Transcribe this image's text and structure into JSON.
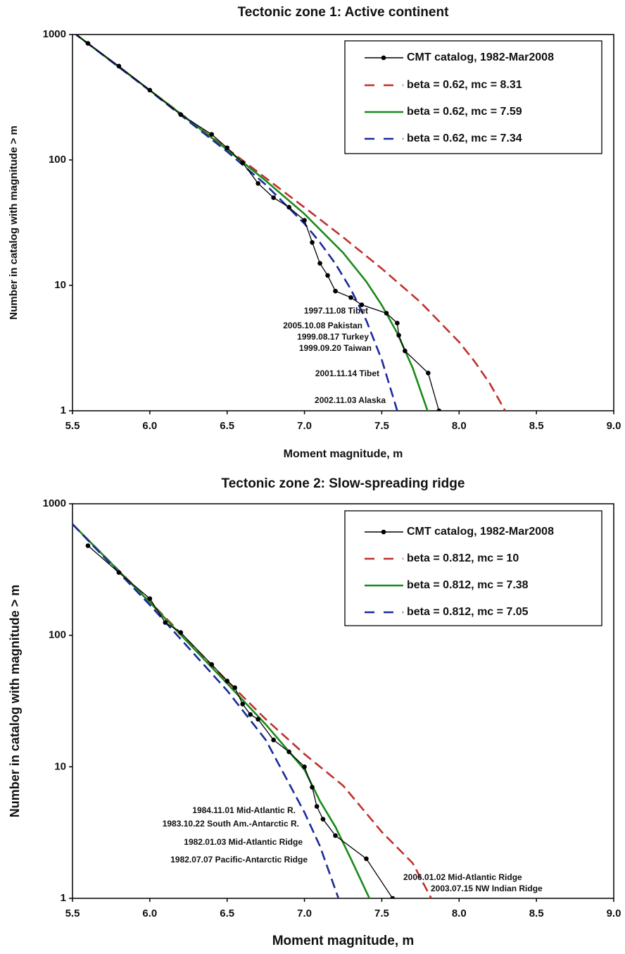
{
  "chart_data": [
    {
      "type": "line",
      "title": "Tectonic zone 1: Active continent",
      "xlabel": "Moment magnitude, m",
      "ylabel": "Number in catalog with magnitude > m",
      "log_y": true,
      "xlim": [
        5.5,
        9.0
      ],
      "ylim": [
        1,
        1000
      ],
      "xticks": [
        5.5,
        {
          "value": 6,
          "label": "6.0"
        },
        6.5,
        {
          "value": 7,
          "label": "7.0"
        },
        7.5,
        {
          "value": 8,
          "label": "8.0"
        },
        8.5,
        {
          "value": 9,
          "label": "9.0"
        }
      ],
      "yticks": [
        1,
        10,
        100,
        1000
      ],
      "series": [
        {
          "name": "CMT catalog, 1982-Mar2008",
          "color": "#000000",
          "dash": "solid",
          "marker": true,
          "x": [
            5.5,
            5.6,
            5.8,
            6.0,
            6.2,
            6.4,
            6.5,
            6.6,
            6.7,
            6.8,
            6.9,
            7.0,
            7.05,
            7.1,
            7.15,
            7.2,
            7.3,
            7.37,
            7.53,
            7.6,
            7.61,
            7.65,
            7.8,
            7.87
          ],
          "values": [
            1050,
            850,
            560,
            360,
            230,
            160,
            125,
            95,
            65,
            50,
            42,
            33,
            22,
            15,
            12,
            9,
            8,
            7,
            6,
            5,
            4,
            3,
            2,
            1
          ]
        },
        {
          "name": "beta = 0.62, mc = 8.31",
          "color": "#c0302b",
          "dash": "dashed",
          "marker": false,
          "x": [
            5.5,
            6.0,
            6.5,
            7.0,
            7.25,
            7.5,
            7.75,
            8.0,
            8.1,
            8.2,
            8.3
          ],
          "values": [
            1050,
            360,
            123,
            41.8,
            24.2,
            13.6,
            7.34,
            3.53,
            2.47,
            1.64,
            0.99
          ]
        },
        {
          "name": "beta = 0.62, mc = 7.59",
          "color": "#1a8a1a",
          "dash": "solid",
          "marker": false,
          "x": [
            5.5,
            6.0,
            6.5,
            6.75,
            7.0,
            7.25,
            7.4,
            7.5,
            7.6,
            7.7,
            7.8
          ],
          "values": [
            1050,
            359,
            121,
            68.3,
            37.1,
            18.2,
            10.7,
            6.96,
            4.16,
            2.19,
            0.97
          ]
        },
        {
          "name": "beta = 0.62, mc = 7.34",
          "color": "#1a2a9a",
          "dash": "dashed",
          "marker": false,
          "x": [
            5.5,
            6.0,
            6.5,
            6.75,
            7.0,
            7.1,
            7.2,
            7.3,
            7.4,
            7.5,
            7.6
          ],
          "values": [
            1050,
            356,
            116.7,
            63.4,
            31.0,
            22.0,
            14.9,
            9.3,
            5.24,
            2.55,
            1.0
          ]
        }
      ],
      "annotations": [
        "1997.11.08 Tibet",
        "2005.10.08 Pakistan",
        "1999.08.17 Turkey",
        "1999.09.20 Taiwan",
        "2001.11.14 Tibet",
        "2002.11.03 Alaska"
      ]
    },
    {
      "type": "line",
      "title": "Tectonic zone 2: Slow-spreading ridge",
      "xlabel": "Moment magnitude, m",
      "ylabel": "Number in catalog with magnitude > m",
      "log_y": true,
      "xlim": [
        5.5,
        9.0
      ],
      "ylim": [
        1,
        1000
      ],
      "xticks": [
        5.5,
        {
          "value": 6,
          "label": "6.0"
        },
        6.5,
        {
          "value": 7,
          "label": "7.0"
        },
        7.5,
        {
          "value": 8,
          "label": "8.0"
        },
        8.5,
        {
          "value": 9,
          "label": "9.0"
        }
      ],
      "yticks": [
        1,
        10,
        100,
        1000
      ],
      "series": [
        {
          "name": "CMT catalog, 1982-Mar2008",
          "color": "#000000",
          "dash": "solid",
          "marker": true,
          "x": [
            5.6,
            5.8,
            6.0,
            6.1,
            6.2,
            6.4,
            6.5,
            6.55,
            6.6,
            6.65,
            6.7,
            6.8,
            6.9,
            7.0,
            7.05,
            7.08,
            7.12,
            7.2,
            7.4,
            7.57
          ],
          "values": [
            480,
            300,
            190,
            125,
            105,
            60,
            45,
            40,
            30,
            25,
            23,
            16,
            13,
            10,
            7,
            5,
            4,
            3,
            2,
            1
          ]
        },
        {
          "name": "beta = 0.812, mc = 10",
          "color": "#c0302b",
          "dash": "dashed",
          "marker": false,
          "x": [
            5.5,
            6.0,
            6.5,
            6.75,
            7.0,
            7.25,
            7.5,
            7.7,
            7.82
          ],
          "values": [
            700,
            180,
            45,
            23,
            12.5,
            7.2,
            3.2,
            1.85,
            1
          ]
        },
        {
          "name": "beta = 0.812, mc = 7.38",
          "color": "#1a8a1a",
          "dash": "solid",
          "marker": false,
          "x": [
            5.5,
            6.0,
            6.5,
            6.75,
            7.0,
            7.1,
            7.2,
            7.3,
            7.42
          ],
          "values": [
            700,
            178,
            43,
            21,
            9.5,
            5.5,
            3.5,
            2.0,
            1
          ]
        },
        {
          "name": "beta = 0.812, mc = 7.05",
          "color": "#1a2a9a",
          "dash": "dashed",
          "marker": false,
          "x": [
            5.5,
            6.0,
            6.5,
            6.75,
            7.0,
            7.1,
            7.22
          ],
          "values": [
            700,
            170,
            38,
            16,
            4.5,
            2.5,
            1
          ]
        }
      ],
      "annotations": [
        "1984.11.01 Mid-Atlantic R.",
        "1983.10.22 South Am.-Antarctic R.",
        "1982.01.03 Mid-Atlantic Ridge",
        "1982.07.07 Pacific-Antarctic Ridge",
        "2006.01.02 Mid-Atlantic Ridge",
        "2003.07.15 NW Indian Ridge"
      ]
    }
  ]
}
